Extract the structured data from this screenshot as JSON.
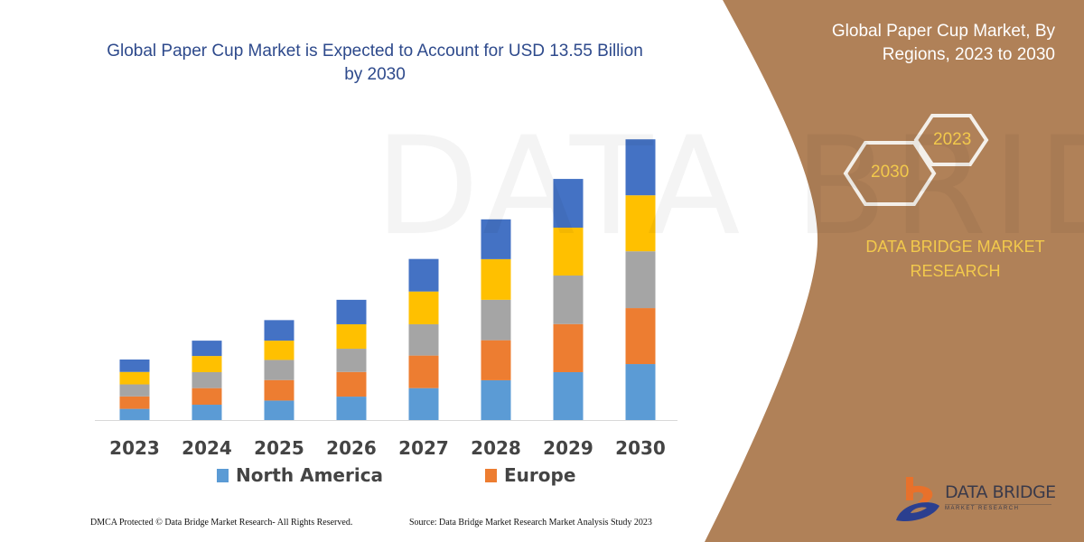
{
  "chart_data": {
    "type": "bar",
    "stacked": true,
    "title": "Global Paper Cup Market is Expected to Account for USD 13.55 Billion by 2030",
    "categories": [
      "2023",
      "2024",
      "2025",
      "2026",
      "2027",
      "2028",
      "2029",
      "2030"
    ],
    "series": [
      {
        "name": "North America",
        "color": "#5B9BD5",
        "values": [
          0.54,
          0.74,
          0.94,
          1.13,
          1.54,
          1.92,
          2.31,
          2.7
        ]
      },
      {
        "name": "Europe",
        "color": "#ED7D31",
        "values": [
          0.6,
          0.8,
          0.99,
          1.19,
          1.57,
          1.93,
          2.32,
          2.7
        ]
      },
      {
        "color": "#A5A5A5",
        "values": [
          0.58,
          0.77,
          0.97,
          1.12,
          1.51,
          1.95,
          2.34,
          2.74
        ]
      },
      {
        "color": "#FFC000",
        "values": [
          0.6,
          0.78,
          0.93,
          1.18,
          1.58,
          1.96,
          2.31,
          2.7
        ]
      },
      {
        "color": "#4472C4",
        "values": [
          0.6,
          0.74,
          0.99,
          1.18,
          1.57,
          1.92,
          2.35,
          2.7
        ]
      }
    ],
    "ylim": [
      0,
      13.55
    ],
    "grid": false,
    "y_axis_shown": false,
    "legend_placement": "bottom"
  },
  "panel": {
    "title": "Global Paper Cup Market, By Regions, 2023 to 2030",
    "hex_start": "2023",
    "hex_end": "2030",
    "brand": "DATA BRIDGE MARKET RESEARCH",
    "color": "#B08158"
  },
  "logo": {
    "name": "DATA BRIDGE",
    "sub": "MARKET RESEARCH"
  },
  "watermark": "DATA BRIDGE",
  "footer": {
    "left": "DMCA Protected © Data Bridge Market Research-  All Rights Reserved.",
    "right": "Source: Data Bridge Market Research  Market Analysis Study 2023"
  }
}
